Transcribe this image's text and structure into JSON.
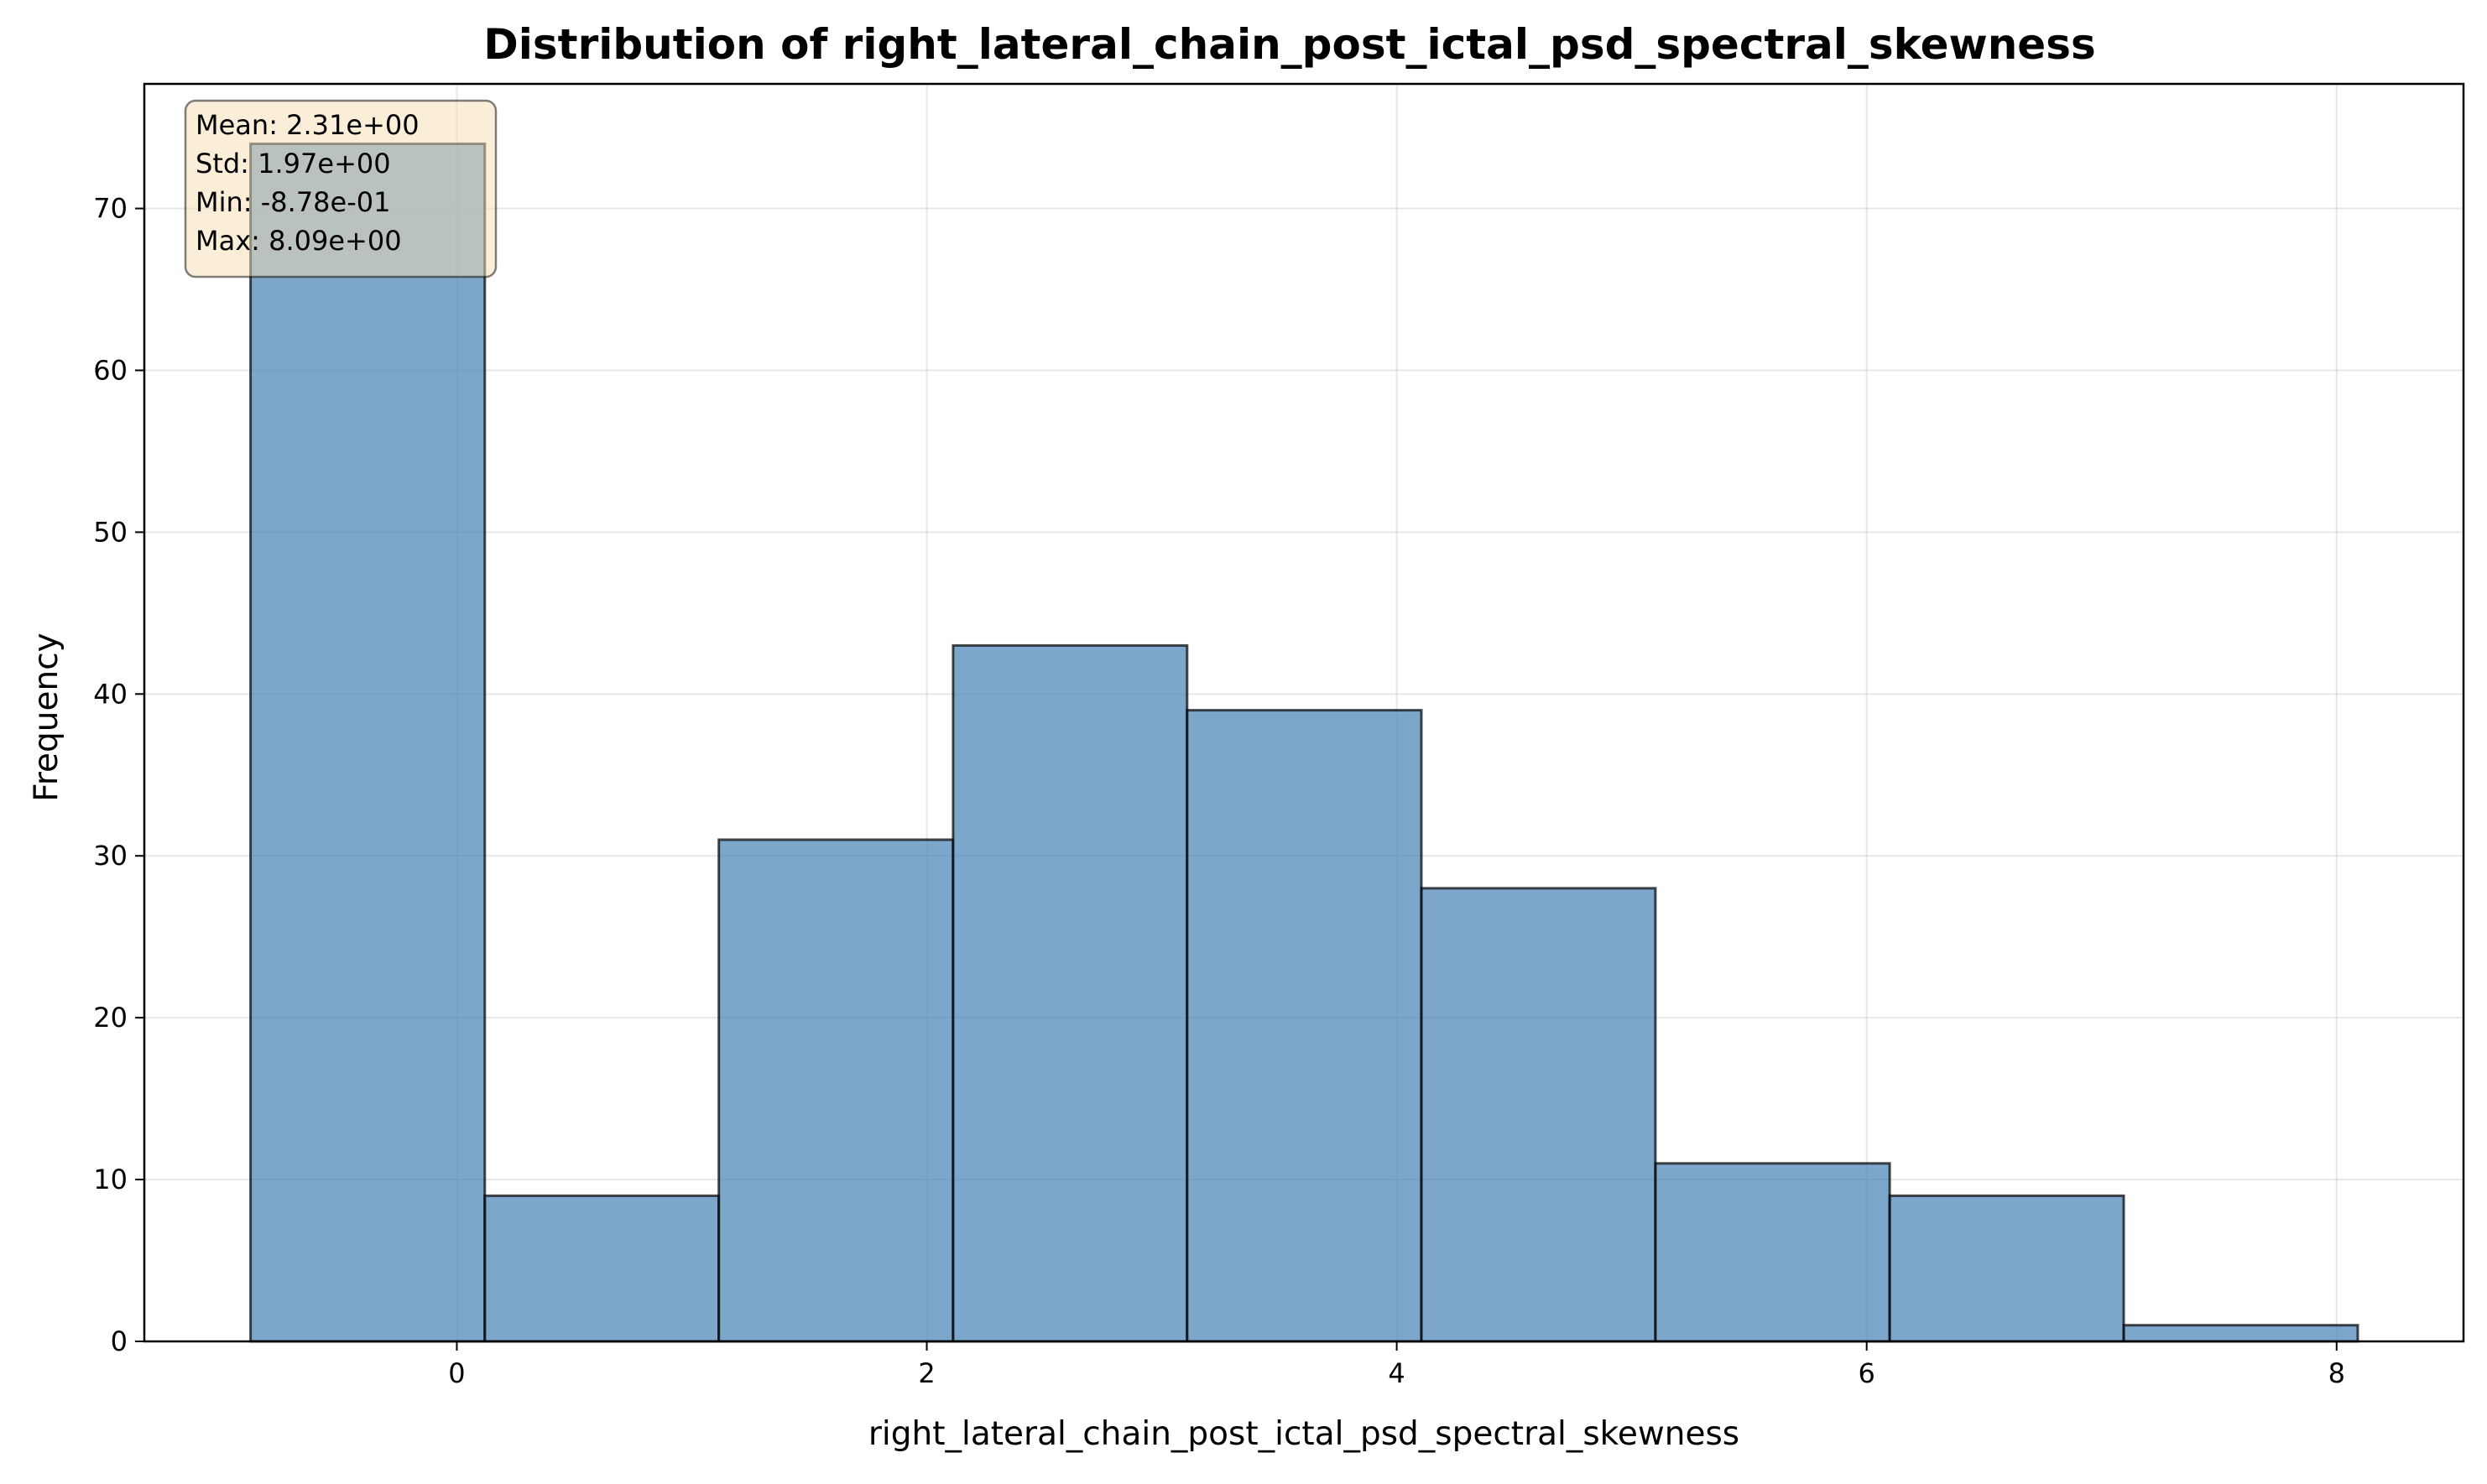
{
  "chart_data": {
    "type": "bar",
    "subtype": "histogram",
    "title": "Distribution of right_lateral_chain_post_ictal_psd_spectral_skewness",
    "xlabel": "right_lateral_chain_post_ictal_psd_spectral_skewness",
    "ylabel": "Frequency",
    "bin_edges": [
      -0.878,
      0.119,
      1.115,
      2.112,
      3.108,
      4.105,
      5.101,
      6.098,
      7.094,
      8.09
    ],
    "values": [
      74,
      9,
      31,
      43,
      39,
      28,
      11,
      9,
      1
    ],
    "xlim": [
      -1.33,
      8.54
    ],
    "ylim": [
      0,
      77.7
    ],
    "xticks": [
      0,
      2,
      4,
      6,
      8
    ],
    "xtick_labels": [
      "0",
      "2",
      "4",
      "6",
      "8"
    ],
    "yticks": [
      0,
      10,
      20,
      30,
      40,
      50,
      60,
      70
    ],
    "ytick_labels": [
      "0",
      "10",
      "20",
      "30",
      "40",
      "50",
      "60",
      "70"
    ],
    "grid": true,
    "bar_color": "#4682b4",
    "bar_opacity": 0.7,
    "edge_color": "#000000",
    "stats_box": {
      "lines": [
        "Mean: 2.31e+00",
        "Std: 1.97e+00",
        "Min: -8.78e-01",
        "Max: 8.09e+00"
      ],
      "placement": "top-left",
      "background": "#f5deb3"
    }
  }
}
